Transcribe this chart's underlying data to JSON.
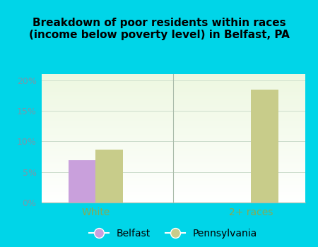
{
  "title": "Breakdown of poor residents within races\n(income below poverty level) in Belfast, PA",
  "categories": [
    "White",
    "2+ races"
  ],
  "belfast_values": [
    6.9,
    0.0
  ],
  "pennsylvania_values": [
    8.7,
    18.5
  ],
  "belfast_color": "#c9a0dc",
  "pennsylvania_color": "#c8cc8a",
  "background_color": "#00d5e8",
  "plot_bg_color_top": "#e8f5e0",
  "plot_bg_color_bottom": "#f5fff5",
  "ylim": [
    0,
    21
  ],
  "yticks": [
    0,
    5,
    10,
    15,
    20
  ],
  "ytick_labels": [
    "0%",
    "5%",
    "10%",
    "15%",
    "20%"
  ],
  "xlabel_color": "#88aa55",
  "ylabel_color": "#7799aa",
  "title_color": "#000000",
  "legend_labels": [
    "Belfast",
    "Pennsylvania"
  ],
  "bar_width": 0.35,
  "group_positions": [
    1.0,
    3.0
  ]
}
